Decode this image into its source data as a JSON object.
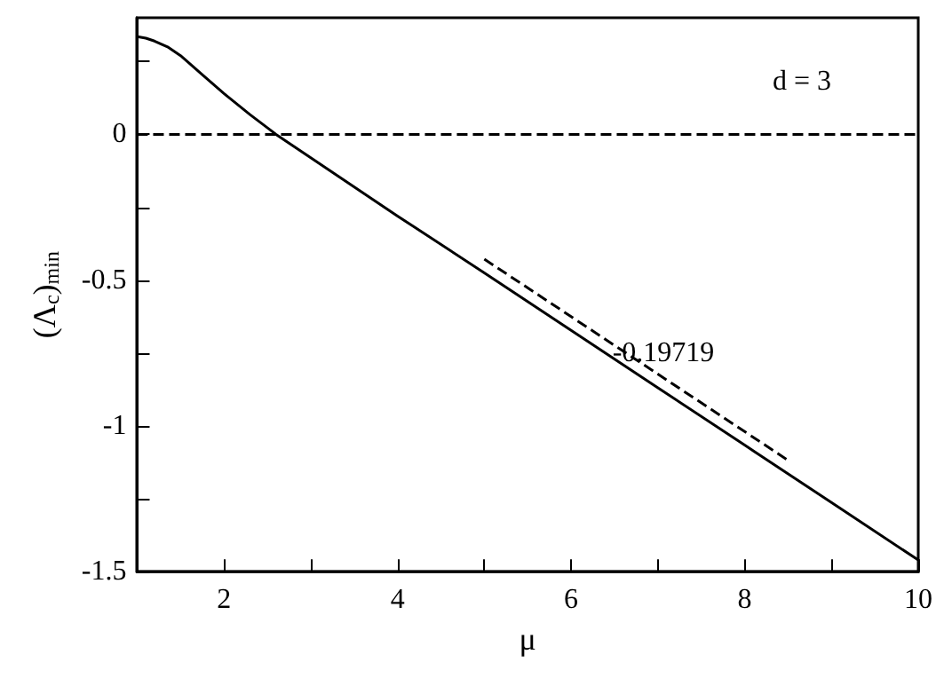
{
  "chart_data": {
    "type": "line",
    "xlabel": "μ",
    "ylabel": "(Λ$_{c}$)$_{min}$",
    "xlim": [
      1,
      10
    ],
    "ylim": [
      -1.5,
      0.4
    ],
    "xticks": [
      {
        "value": 1,
        "label": null
      },
      2,
      {
        "value": 3,
        "label": null
      },
      4,
      {
        "value": 5,
        "label": null
      },
      6,
      {
        "value": 7,
        "label": null
      },
      8,
      {
        "value": 9,
        "label": null
      },
      10
    ],
    "yticks": [
      -1.5,
      {
        "value": -1.25,
        "label": null
      },
      -1,
      {
        "value": -0.75,
        "label": null
      },
      -0.5,
      {
        "value": -0.25,
        "label": null
      },
      0,
      {
        "value": 0.25,
        "label": null
      }
    ],
    "series": [
      {
        "color": "#000000",
        "line_style": "solid",
        "x": [
          1,
          1.1,
          1.2,
          1.35,
          1.5,
          1.75,
          2,
          2.3,
          2.6,
          3,
          4,
          5,
          6,
          7,
          8,
          9,
          10
        ],
        "values": [
          0.335,
          0.33,
          0.32,
          0.3,
          0.27,
          0.205,
          0.14,
          0.068,
          0,
          -0.08,
          -0.28,
          -0.475,
          -0.672,
          -0.869,
          -1.066,
          -1.263,
          -1.46
        ]
      },
      {
        "color": "#000000",
        "line_style": "dashed",
        "x": [
          5,
          8.5
        ],
        "values": [
          -0.428,
          -1.118
        ]
      }
    ],
    "ref_lines": [
      {
        "axis": "y",
        "value": 0,
        "color": "#000000",
        "line_style": "dashed"
      }
    ],
    "annotations": [
      "d = 3",
      {
        "text": "-0.19719",
        "x": 6.6,
        "y": -0.73
      }
    ],
    "grid": false,
    "marker": "none"
  }
}
